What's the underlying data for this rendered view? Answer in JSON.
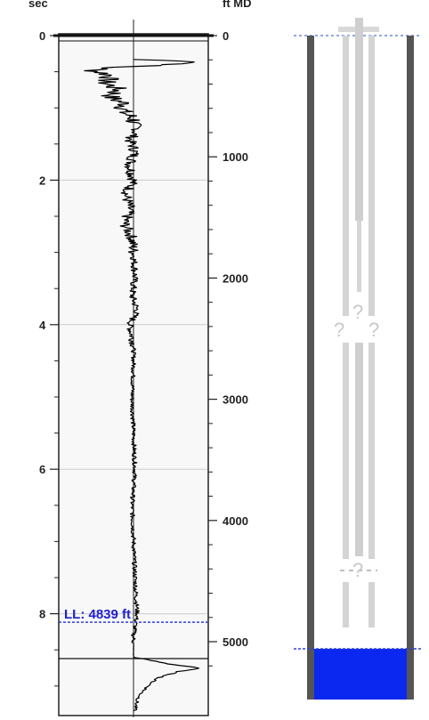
{
  "chart_data": {
    "type": "line",
    "orientation": "vertical",
    "left_axis_label": "sec",
    "right_axis_label": "ft MD",
    "left_ticks": [
      "0",
      "2",
      "4",
      "6",
      "8"
    ],
    "right_ticks": [
      "0",
      "1000",
      "2000",
      "3000",
      "4000",
      "5000"
    ],
    "left_range_sec": [
      0,
      9.4
    ],
    "right_range_ft": [
      0,
      5350
    ],
    "liquid_level_label": "LL: 4839 ft",
    "liquid_level_ft": 4839,
    "trace_points_sec_amp": [
      [
        0.0,
        0.0
      ],
      [
        0.33,
        0.0
      ],
      [
        0.36,
        0.95
      ],
      [
        0.4,
        0.55
      ],
      [
        0.44,
        -0.3
      ],
      [
        0.48,
        -0.55
      ],
      [
        0.55,
        -0.3
      ],
      [
        0.65,
        -0.38
      ],
      [
        0.75,
        -0.2
      ],
      [
        0.85,
        -0.32
      ],
      [
        0.95,
        -0.1
      ],
      [
        1.05,
        -0.15
      ],
      [
        1.15,
        0.0
      ],
      [
        1.3,
        0.05
      ],
      [
        1.45,
        -0.05
      ],
      [
        1.6,
        0.02
      ],
      [
        1.8,
        -0.05
      ],
      [
        2.0,
        0.0
      ],
      [
        2.2,
        -0.1
      ],
      [
        2.4,
        -0.05
      ],
      [
        2.6,
        -0.12
      ],
      [
        2.8,
        -0.02
      ],
      [
        3.0,
        0.0
      ],
      [
        3.3,
        0.02
      ],
      [
        3.6,
        -0.02
      ],
      [
        3.8,
        0.05
      ],
      [
        4.0,
        -0.05
      ],
      [
        4.3,
        0.0
      ],
      [
        4.6,
        0.0
      ],
      [
        5.0,
        -0.02
      ],
      [
        5.5,
        0.0
      ],
      [
        6.0,
        0.02
      ],
      [
        6.5,
        -0.02
      ],
      [
        7.0,
        0.0
      ],
      [
        7.5,
        0.02
      ],
      [
        8.0,
        0.05
      ],
      [
        8.3,
        0.0
      ],
      [
        8.45,
        0.0
      ],
      [
        8.6,
        0.0
      ],
      [
        8.7,
        0.5
      ],
      [
        8.75,
        0.9
      ],
      [
        8.8,
        0.6
      ],
      [
        8.9,
        0.3
      ],
      [
        9.0,
        0.2
      ],
      [
        9.1,
        0.1
      ],
      [
        9.2,
        0.05
      ],
      [
        9.4,
        0.0
      ]
    ]
  },
  "wellbore": {
    "unknown_mark": "?",
    "fluid_color": "#0a28f0"
  }
}
